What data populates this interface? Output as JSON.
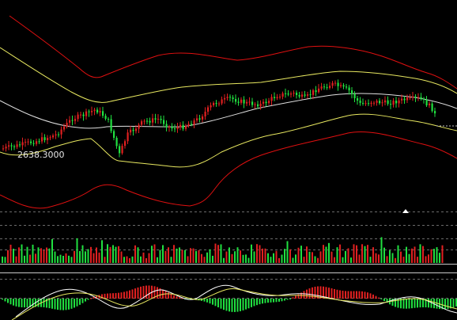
{
  "chart_data": [
    {
      "type": "candlestick",
      "panel": "main",
      "price_marker": "2638.3000",
      "bands": [
        "outer-red-upper",
        "inner-yellow-upper",
        "middle-white",
        "inner-yellow-lower",
        "outer-red-lower"
      ],
      "colors": {
        "up": "#e02020",
        "down": "#20e040",
        "outer_band": "#e01010",
        "inner_band": "#e8e860",
        "middle": "#e0e0e0"
      }
    },
    {
      "type": "bar",
      "panel": "volume",
      "colors": {
        "up": "#e02020",
        "down": "#20e040"
      }
    },
    {
      "type": "bar",
      "panel": "macd",
      "lines": [
        "dif-white",
        "dea-yellow"
      ],
      "colors": {
        "pos": "#e02020",
        "neg": "#20e040",
        "dif": "#ffffff",
        "dea": "#e8e860"
      }
    }
  ],
  "colors": {
    "background": "#000000",
    "grid": "#6a6a6a",
    "separator": "#c0c0c0"
  }
}
